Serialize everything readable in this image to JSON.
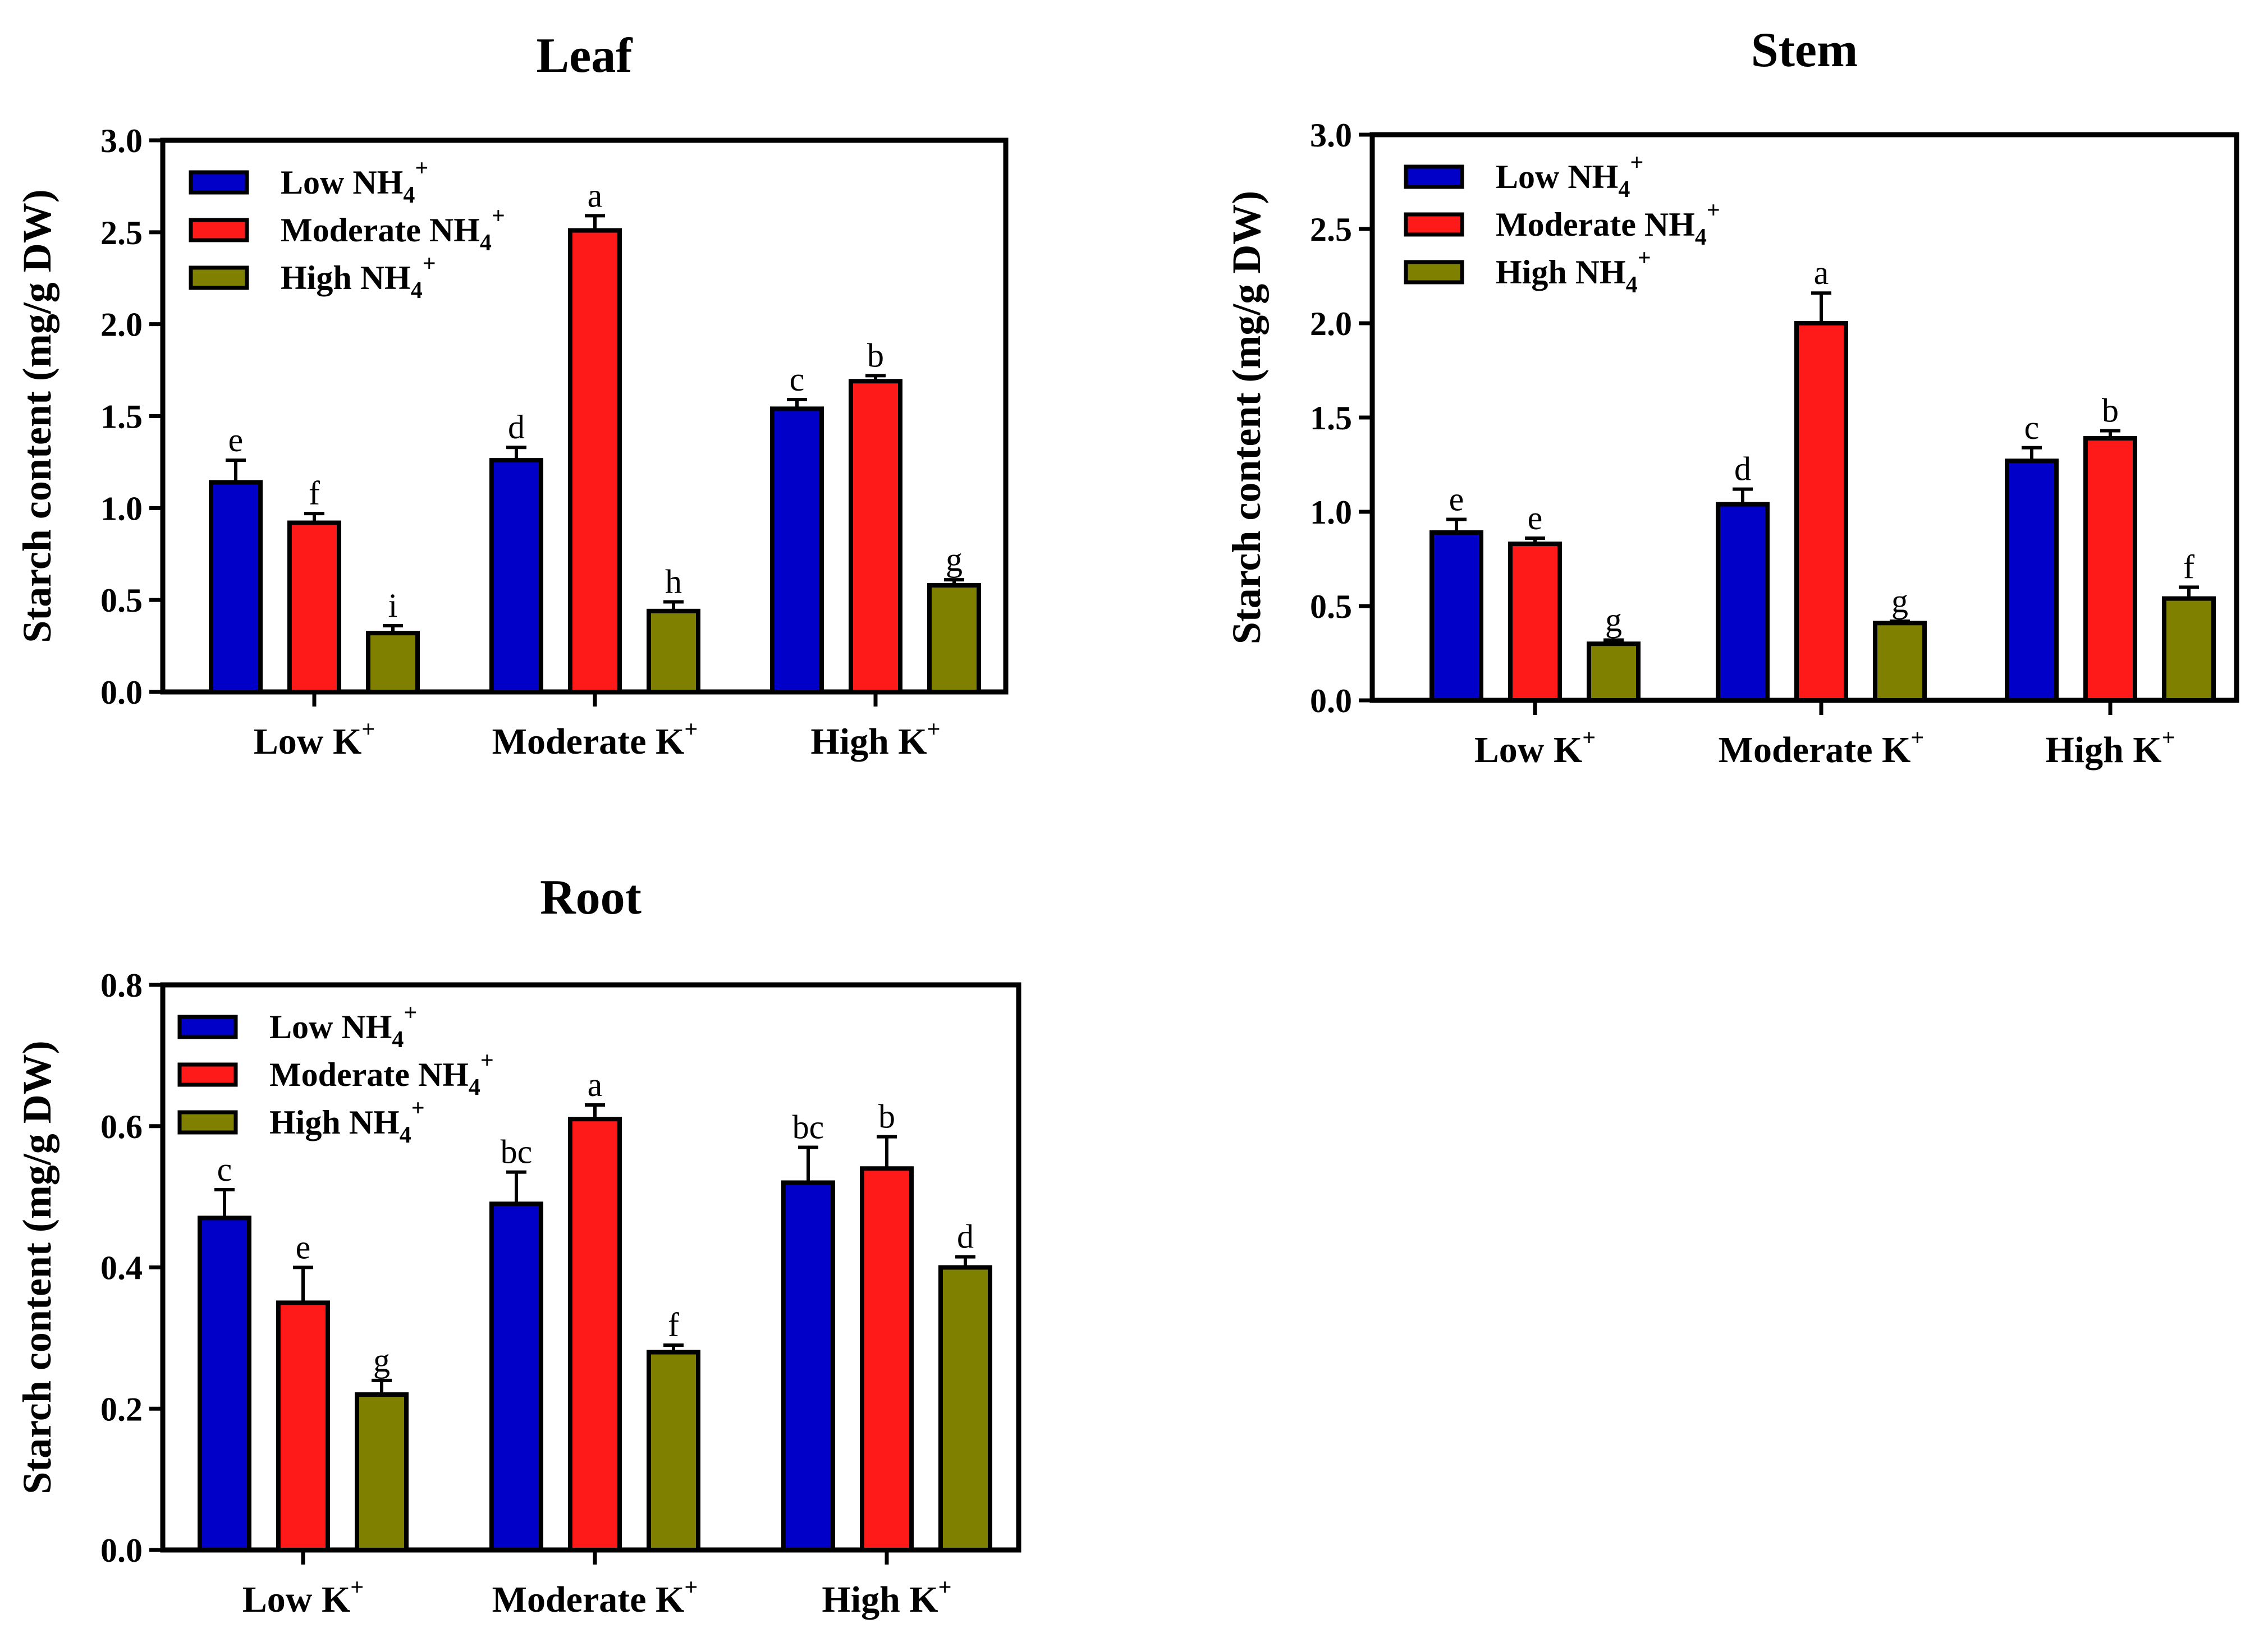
{
  "colors": {
    "low": "#0000c8",
    "moderate": "#ff1a1a",
    "high": "#7f7f00"
  },
  "chart_data": [
    {
      "type": "bar",
      "title": "Leaf",
      "ylabel": "Starch content (mg/g DW)",
      "categories": [
        "Low K",
        "Moderate K",
        "High K"
      ],
      "category_superscripts": [
        "+",
        "+",
        "+"
      ],
      "ylim": [
        0,
        3.0
      ],
      "yticks": [
        "0.0",
        "0.5",
        "1.0",
        "1.5",
        "2.0",
        "2.5",
        "3.0"
      ],
      "legend": {
        "position": "top-left",
        "entries": [
          {
            "text": "Low NH",
            "sub": "4",
            "sup": "+"
          },
          {
            "text": "Moderate NH",
            "sub": "4",
            "sup": "+"
          },
          {
            "text": "High NH",
            "sub": "4",
            "sup": "+"
          }
        ]
      },
      "series": [
        {
          "key": "low",
          "values": [
            1.14,
            1.26,
            1.54
          ],
          "errors": [
            0.12,
            0.07,
            0.05
          ],
          "labels": [
            "e",
            "d",
            "c"
          ]
        },
        {
          "key": "moderate",
          "values": [
            0.92,
            2.51,
            1.69
          ],
          "errors": [
            0.05,
            0.08,
            0.03
          ],
          "labels": [
            "f",
            "a",
            "b"
          ]
        },
        {
          "key": "high",
          "values": [
            0.32,
            0.44,
            0.58
          ],
          "errors": [
            0.04,
            0.05,
            0.03
          ],
          "labels": [
            "i",
            "h",
            "g"
          ]
        }
      ]
    },
    {
      "type": "bar",
      "title": "Stem",
      "ylabel": "Starch content (mg/g DW)",
      "categories": [
        "Low K",
        "Moderate K",
        "High K"
      ],
      "category_superscripts": [
        "+",
        "+",
        "+"
      ],
      "ylim": [
        0,
        3.0
      ],
      "yticks": [
        "0.0",
        "0.5",
        "1.0",
        "1.5",
        "2.0",
        "2.5",
        "3.0"
      ],
      "legend": {
        "position": "top-left",
        "entries": [
          {
            "text": "Low NH",
            "sub": "4",
            "sup": "+"
          },
          {
            "text": "Moderate NH",
            "sub": "4",
            "sup": "+"
          },
          {
            "text": "High NH",
            "sub": "4",
            "sup": "+"
          }
        ]
      },
      "series": [
        {
          "key": "low",
          "values": [
            0.89,
            1.04,
            1.27
          ],
          "errors": [
            0.07,
            0.08,
            0.07
          ],
          "labels": [
            "e",
            "d",
            "c"
          ]
        },
        {
          "key": "moderate",
          "values": [
            0.83,
            2.0,
            1.39
          ],
          "errors": [
            0.03,
            0.16,
            0.04
          ],
          "labels": [
            "e",
            "a",
            "b"
          ]
        },
        {
          "key": "high",
          "values": [
            0.3,
            0.41,
            0.54
          ],
          "errors": [
            0.02,
            0.01,
            0.06
          ],
          "labels": [
            "g",
            "g",
            "f"
          ]
        }
      ]
    },
    {
      "type": "bar",
      "title": "Root",
      "ylabel": "Starch content (mg/g DW)",
      "categories": [
        "Low K",
        "Moderate K",
        "High K"
      ],
      "category_superscripts": [
        "+",
        "+",
        "+"
      ],
      "ylim": [
        0,
        0.8
      ],
      "yticks": [
        "0.0",
        "0.2",
        "0.4",
        "0.6",
        "0.8"
      ],
      "legend": {
        "position": "top-left",
        "entries": [
          {
            "text": "Low NH",
            "sub": "4",
            "sup": "+"
          },
          {
            "text": "Moderate NH",
            "sub": "4",
            "sup": "+"
          },
          {
            "text": "High NH",
            "sub": "4",
            "sup": "+"
          }
        ]
      },
      "series": [
        {
          "key": "low",
          "values": [
            0.47,
            0.49,
            0.52
          ],
          "errors": [
            0.04,
            0.045,
            0.05
          ],
          "labels": [
            "c",
            "bc",
            "bc"
          ]
        },
        {
          "key": "moderate",
          "values": [
            0.35,
            0.61,
            0.54
          ],
          "errors": [
            0.05,
            0.02,
            0.045
          ],
          "labels": [
            "e",
            "a",
            "b"
          ]
        },
        {
          "key": "high",
          "values": [
            0.22,
            0.28,
            0.4
          ],
          "errors": [
            0.02,
            0.01,
            0.015
          ],
          "labels": [
            "g",
            "f",
            "d"
          ]
        }
      ]
    }
  ]
}
